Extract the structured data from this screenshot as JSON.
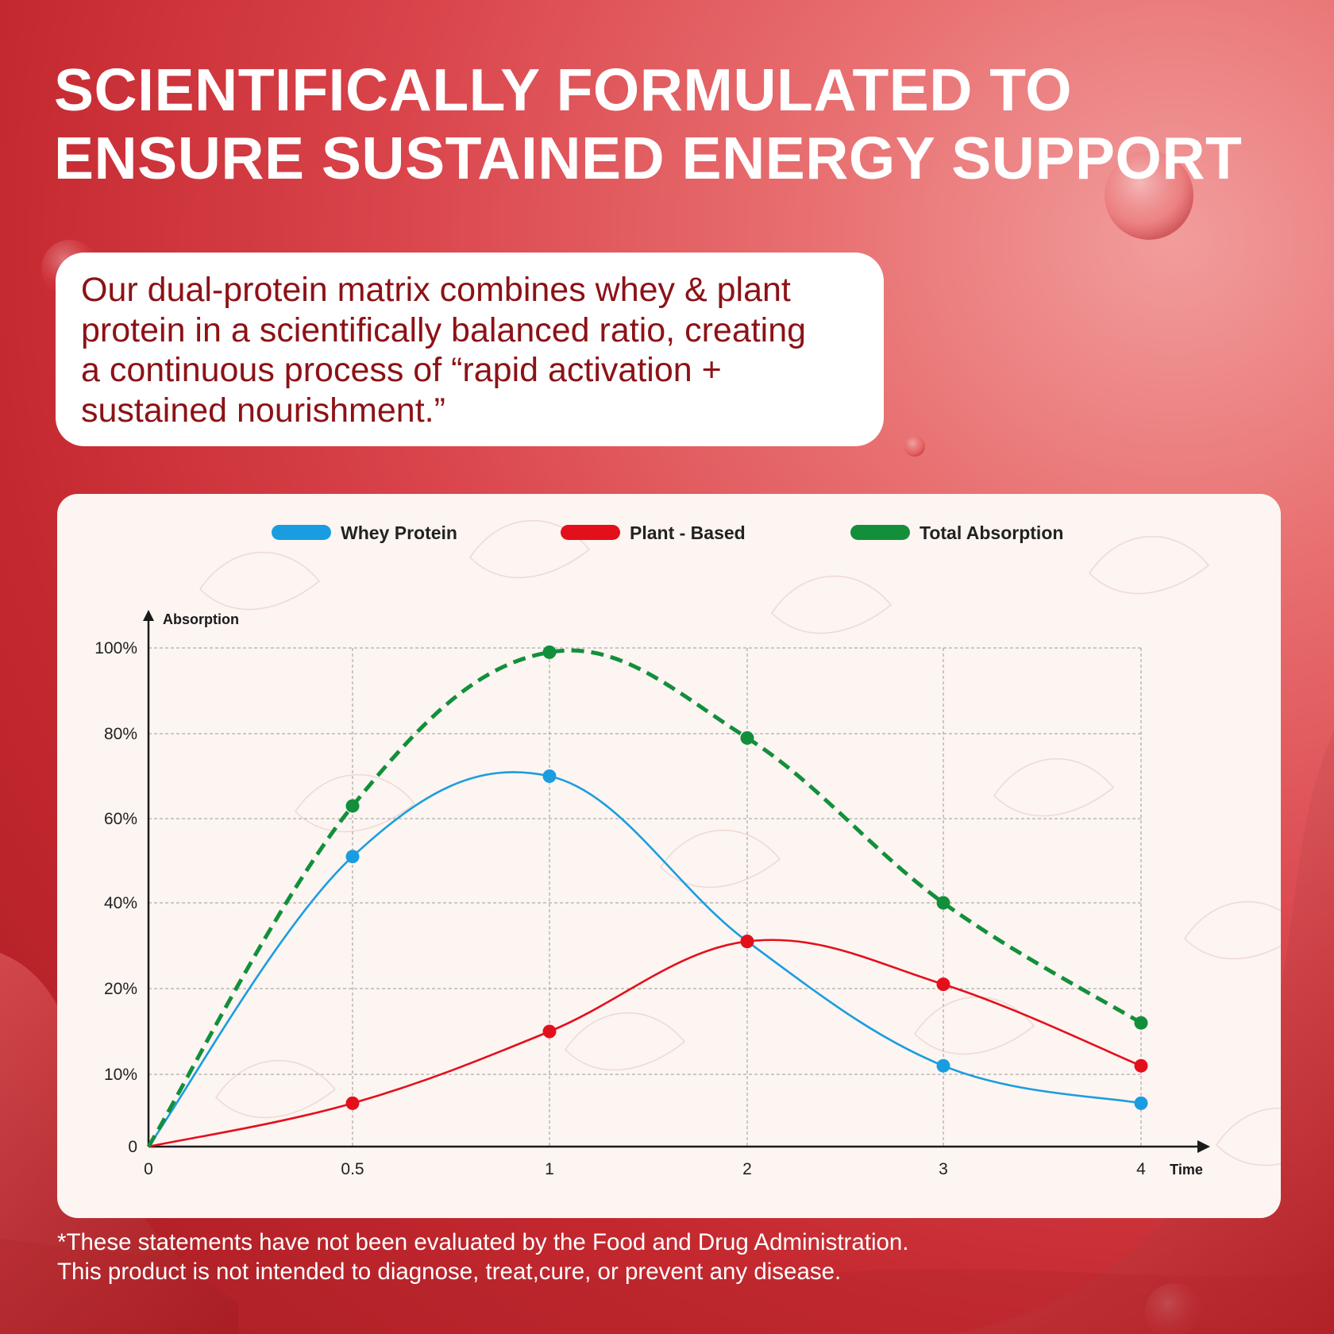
{
  "headline": {
    "line1": "SCIENTIFICALLY FORMULATED TO",
    "line2": "ENSURE SUSTAINED ENERGY SUPPORT"
  },
  "intro": {
    "lines": [
      "Our dual-protein matrix combines whey & plant",
      "protein in a scientifically balanced ratio, creating",
      "a continuous process of “rapid activation +",
      "sustained nourishment.”"
    ]
  },
  "disclaimer": {
    "line1": "*These statements have not been evaluated by the Food and Drug Administration.",
    "line2": "This product is not intended to diagnose, treat,cure, or prevent any disease."
  },
  "colors": {
    "brand_red": "#d32f35",
    "intro_text": "#8c1216",
    "card_bg": "#fcf5f1"
  },
  "chart_data": {
    "type": "line",
    "xlabel": "Time",
    "ylabel": "Absorption",
    "x": [
      0,
      0.5,
      1,
      2,
      3,
      4
    ],
    "x_tick_labels": [
      "0",
      "0.5",
      "1",
      "2",
      "3",
      "4"
    ],
    "y_tick_labels": [
      "0",
      "10%",
      "20%",
      "40%",
      "60%",
      "80%",
      "100%"
    ],
    "y_tick_values": [
      0,
      10,
      20,
      40,
      60,
      80,
      100
    ],
    "ylim": [
      0,
      100
    ],
    "grid": true,
    "legend_position": "top-center",
    "series": [
      {
        "name": "Whey Protein",
        "color": "#1a9de0",
        "dashed": false,
        "values": [
          0,
          51,
          70,
          31,
          11,
          6
        ]
      },
      {
        "name": "Plant - Based",
        "color": "#e3101c",
        "dashed": false,
        "values": [
          0,
          6,
          15,
          31,
          21,
          11
        ]
      },
      {
        "name": "Total Absorption",
        "color": "#138f3c",
        "dashed": true,
        "values": [
          0,
          63,
          99,
          79,
          40,
          16
        ]
      }
    ]
  }
}
